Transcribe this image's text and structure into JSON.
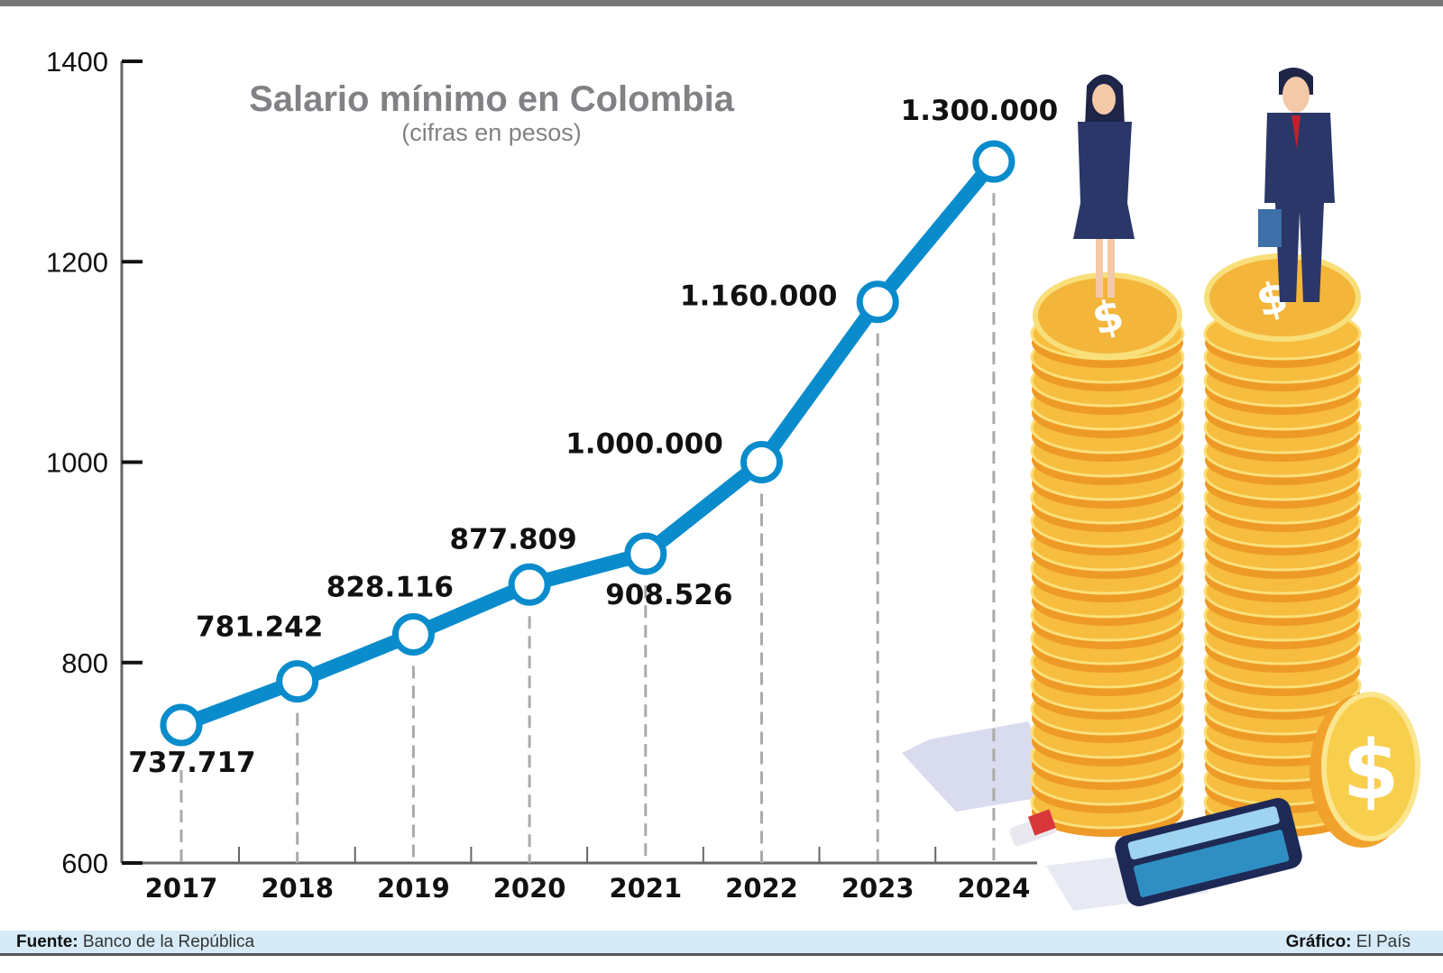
{
  "chart_data": {
    "type": "line",
    "title": "Salario mínimo en Colombia",
    "subtitle": "(cifras en pesos)",
    "categories": [
      "2017",
      "2018",
      "2019",
      "2020",
      "2021",
      "2022",
      "2023",
      "2024"
    ],
    "values": [
      737.717,
      781.242,
      828.116,
      877.809,
      908.526,
      1000,
      1160,
      1300
    ],
    "data_labels": [
      "737.717",
      "781.242",
      "828.116",
      "877.809",
      "908.526",
      "1.000.000",
      "1.160.000",
      "1.300.000"
    ],
    "yticks": [
      600,
      800,
      1000,
      1200,
      1400
    ],
    "ylim": [
      600,
      1400
    ],
    "grid": false,
    "line_color": "#0a8ccc",
    "xlabel": "",
    "ylabel": ""
  },
  "footer": {
    "source_label": "Fuente:",
    "source": "Banco de la República",
    "credit_label": "Gráfico:",
    "credit": "El País"
  }
}
